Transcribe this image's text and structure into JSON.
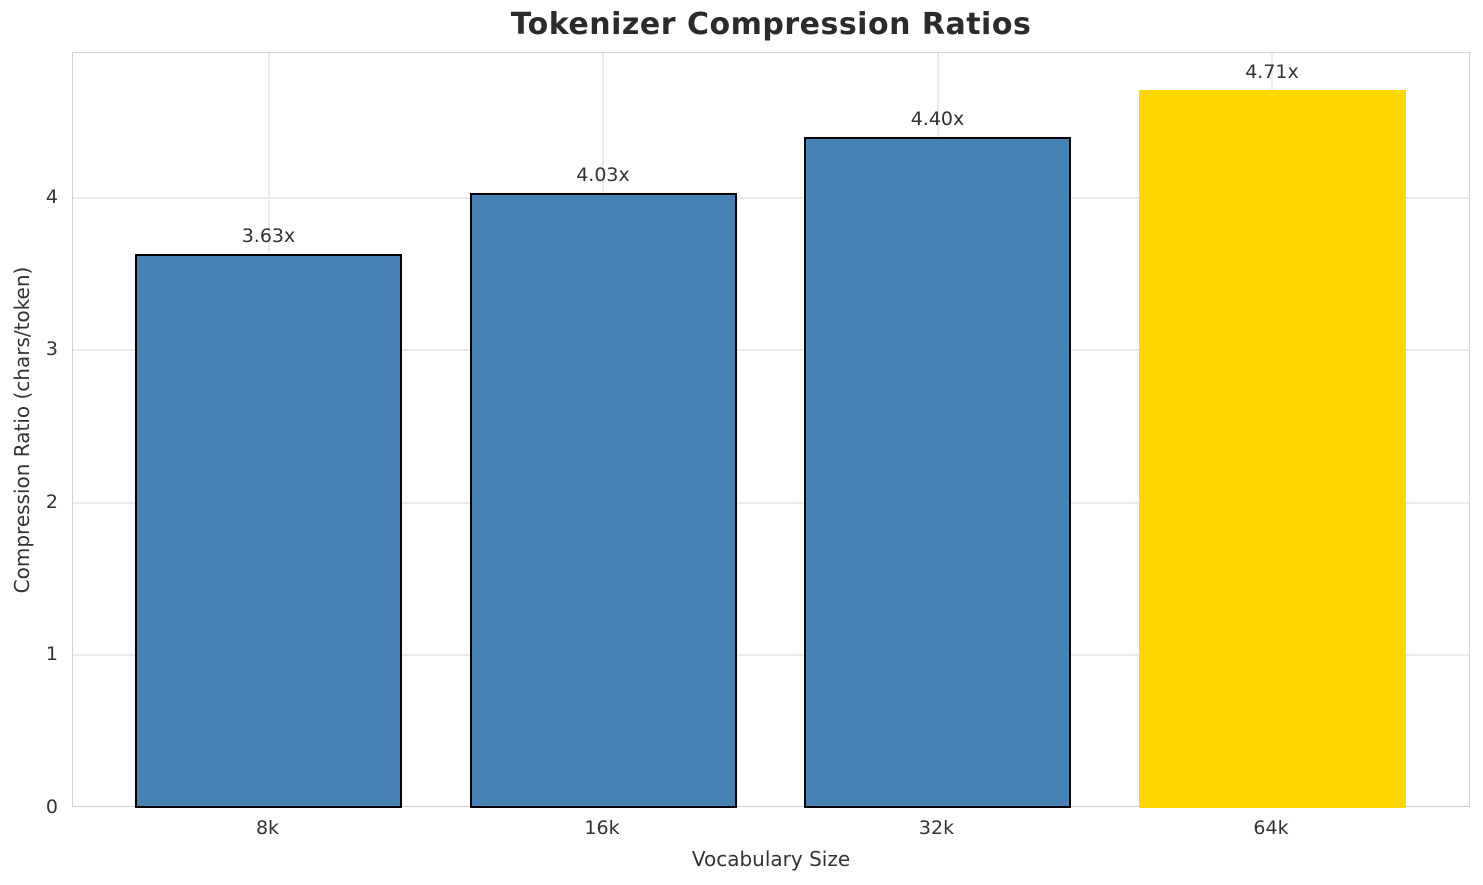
{
  "chart_data": {
    "type": "bar",
    "title": "Tokenizer Compression Ratios",
    "xlabel": "Vocabulary Size",
    "ylabel": "Compression Ratio (chars/token)",
    "categories": [
      "8k",
      "16k",
      "32k",
      "64k"
    ],
    "values": [
      3.63,
      4.03,
      4.4,
      4.71
    ],
    "bar_labels": [
      "3.63x",
      "4.03x",
      "4.40x",
      "4.71x"
    ],
    "yticks": [
      0,
      1,
      2,
      3,
      4
    ],
    "ylim": [
      0,
      4.95
    ],
    "grid": "on",
    "legend": "none",
    "highlight_index": 3,
    "colors": {
      "bar": "#4682B4",
      "highlight": "#FFD700",
      "bar_edge": "#000000",
      "grid": "#ebebeb",
      "spine": "#d2d2d2",
      "text": "#333333",
      "title_text": "#2b2b2b",
      "background": "#ffffff"
    },
    "bar_colors": [
      "#4682B4",
      "#4682B4",
      "#4682B4",
      "#FFD700"
    ],
    "bar_edge_colors": [
      "#000000",
      "#000000",
      "#000000",
      "#FFD700"
    ]
  }
}
